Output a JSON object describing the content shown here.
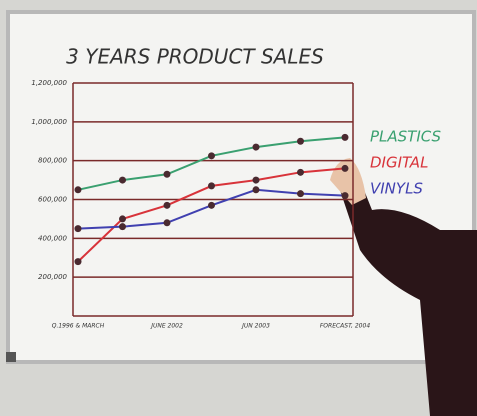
{
  "chart_data": {
    "type": "line",
    "title": "3 YEARS PRODUCT SALES",
    "categories": [
      "Q.1996 & MARCH",
      null,
      "JUNE 2002",
      null,
      "JUN 2003",
      null,
      "FORECAST, 2004"
    ],
    "series": [
      {
        "name": "PLASTICS",
        "color": "#3aa070",
        "values": [
          650000,
          700000,
          730000,
          825000,
          870000,
          900000,
          920000
        ]
      },
      {
        "name": "DIGITAL",
        "color": "#d8333a",
        "values": [
          280000,
          500000,
          570000,
          670000,
          700000,
          740000,
          760000
        ]
      },
      {
        "name": "VINYLS",
        "color": "#4040b0",
        "values": [
          450000,
          460000,
          480000,
          570000,
          650000,
          630000,
          620000
        ]
      }
    ],
    "ylim": [
      0,
      1200000
    ],
    "yticks": [
      {
        "value": 200000,
        "label": "200,000"
      },
      {
        "value": 400000,
        "label": "400,000"
      },
      {
        "value": 600000,
        "label": "600,000"
      },
      {
        "value": 800000,
        "label": "800,000"
      },
      {
        "value": 1000000,
        "label": "1,000,000"
      },
      {
        "value": 1200000,
        "label": "1,200,000"
      }
    ],
    "grid": true
  }
}
